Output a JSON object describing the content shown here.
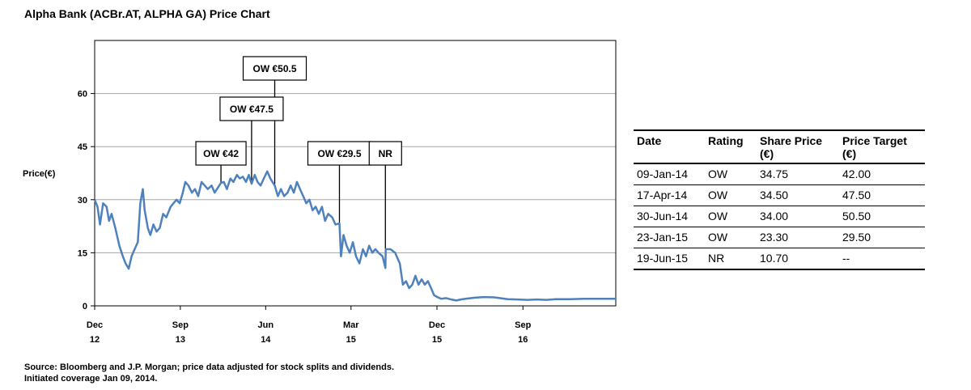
{
  "title": "Alpha Bank (ACBr.AT, ALPHA GA) Price Chart",
  "chart_data": {
    "type": "line",
    "title": "Alpha Bank (ACBr.AT, ALPHA GA) Price Chart",
    "ylabel": "Price(€)",
    "xlabel": "",
    "ylim": [
      0,
      75
    ],
    "yticks": [
      0,
      15,
      30,
      45,
      60
    ],
    "x_range": [
      "2012-12-01",
      "2017-06-25"
    ],
    "x_ticks": [
      {
        "date": "2012-12-01",
        "line1": "Dec",
        "line2": "12"
      },
      {
        "date": "2013-09-01",
        "line1": "Sep",
        "line2": "13"
      },
      {
        "date": "2014-06-01",
        "line1": "Jun",
        "line2": "14"
      },
      {
        "date": "2015-03-01",
        "line1": "Mar",
        "line2": "15"
      },
      {
        "date": "2015-12-01",
        "line1": "Dec",
        "line2": "15"
      },
      {
        "date": "2016-09-01",
        "line1": "Sep",
        "line2": "16"
      }
    ],
    "grid": true,
    "series": [
      {
        "name": "",
        "color": "#4f81bd",
        "points": [
          [
            "2012-12-01",
            30
          ],
          [
            "2012-12-10",
            28
          ],
          [
            "2012-12-18",
            23
          ],
          [
            "2012-12-28",
            29
          ],
          [
            "2013-01-08",
            28
          ],
          [
            "2013-01-16",
            24
          ],
          [
            "2013-01-24",
            26
          ],
          [
            "2013-02-05",
            22
          ],
          [
            "2013-02-18",
            17
          ],
          [
            "2013-03-01",
            14
          ],
          [
            "2013-03-10",
            12
          ],
          [
            "2013-03-20",
            10.5
          ],
          [
            "2013-03-29",
            14
          ],
          [
            "2013-04-08",
            16
          ],
          [
            "2013-04-18",
            18
          ],
          [
            "2013-04-26",
            29
          ],
          [
            "2013-05-04",
            33
          ],
          [
            "2013-05-10",
            27
          ],
          [
            "2013-05-20",
            22
          ],
          [
            "2013-05-28",
            20
          ],
          [
            "2013-06-07",
            23
          ],
          [
            "2013-06-17",
            21
          ],
          [
            "2013-06-27",
            22
          ],
          [
            "2013-07-08",
            26
          ],
          [
            "2013-07-18",
            25
          ],
          [
            "2013-08-01",
            28
          ],
          [
            "2013-08-10",
            29
          ],
          [
            "2013-08-20",
            30
          ],
          [
            "2013-08-30",
            29
          ],
          [
            "2013-09-09",
            32
          ],
          [
            "2013-09-17",
            35
          ],
          [
            "2013-09-27",
            34
          ],
          [
            "2013-10-08",
            32
          ],
          [
            "2013-10-18",
            33
          ],
          [
            "2013-10-28",
            31
          ],
          [
            "2013-11-08",
            35
          ],
          [
            "2013-11-18",
            34
          ],
          [
            "2013-11-28",
            33
          ],
          [
            "2013-12-10",
            34
          ],
          [
            "2013-12-20",
            32
          ],
          [
            "2014-01-09",
            34.75
          ],
          [
            "2014-01-18",
            35
          ],
          [
            "2014-01-28",
            33
          ],
          [
            "2014-02-08",
            36
          ],
          [
            "2014-02-18",
            35
          ],
          [
            "2014-03-01",
            37
          ],
          [
            "2014-03-10",
            36
          ],
          [
            "2014-03-20",
            36.5
          ],
          [
            "2014-03-30",
            35
          ],
          [
            "2014-04-08",
            37
          ],
          [
            "2014-04-17",
            34.5
          ],
          [
            "2014-04-27",
            37
          ],
          [
            "2014-05-06",
            35
          ],
          [
            "2014-05-16",
            34
          ],
          [
            "2014-05-26",
            36
          ],
          [
            "2014-06-06",
            38
          ],
          [
            "2014-06-16",
            36
          ],
          [
            "2014-06-30",
            34
          ],
          [
            "2014-07-10",
            31
          ],
          [
            "2014-07-20",
            33
          ],
          [
            "2014-07-30",
            31
          ],
          [
            "2014-08-10",
            32
          ],
          [
            "2014-08-20",
            34
          ],
          [
            "2014-08-30",
            32
          ],
          [
            "2014-09-09",
            35
          ],
          [
            "2014-09-19",
            33
          ],
          [
            "2014-09-29",
            31
          ],
          [
            "2014-10-09",
            29
          ],
          [
            "2014-10-19",
            30
          ],
          [
            "2014-10-29",
            27
          ],
          [
            "2014-11-08",
            28
          ],
          [
            "2014-11-18",
            26
          ],
          [
            "2014-11-28",
            28
          ],
          [
            "2014-12-08",
            24
          ],
          [
            "2014-12-18",
            26
          ],
          [
            "2014-12-31",
            25
          ],
          [
            "2015-01-10",
            23
          ],
          [
            "2015-01-23",
            23.3
          ],
          [
            "2015-01-28",
            14
          ],
          [
            "2015-02-05",
            20
          ],
          [
            "2015-02-15",
            17
          ],
          [
            "2015-02-25",
            15
          ],
          [
            "2015-03-07",
            18
          ],
          [
            "2015-03-17",
            14
          ],
          [
            "2015-03-28",
            12
          ],
          [
            "2015-04-08",
            16
          ],
          [
            "2015-04-18",
            14
          ],
          [
            "2015-04-28",
            17
          ],
          [
            "2015-05-08",
            15
          ],
          [
            "2015-05-18",
            16
          ],
          [
            "2015-05-28",
            15
          ],
          [
            "2015-06-10",
            14
          ],
          [
            "2015-06-19",
            10.7
          ],
          [
            "2015-06-20",
            16
          ],
          [
            "2015-07-05",
            16
          ],
          [
            "2015-07-20",
            15
          ],
          [
            "2015-08-04",
            12
          ],
          [
            "2015-08-14",
            6
          ],
          [
            "2015-08-24",
            7
          ],
          [
            "2015-09-03",
            5
          ],
          [
            "2015-09-13",
            6
          ],
          [
            "2015-09-23",
            8.5
          ],
          [
            "2015-10-03",
            6
          ],
          [
            "2015-10-13",
            7.5
          ],
          [
            "2015-10-23",
            6
          ],
          [
            "2015-11-02",
            7
          ],
          [
            "2015-11-12",
            5
          ],
          [
            "2015-11-22",
            3
          ],
          [
            "2015-12-02",
            2.5
          ],
          [
            "2015-12-15",
            2
          ],
          [
            "2015-12-30",
            2.2
          ],
          [
            "2016-01-15",
            1.8
          ],
          [
            "2016-02-01",
            1.5
          ],
          [
            "2016-02-15",
            1.8
          ],
          [
            "2016-03-01",
            2.0
          ],
          [
            "2016-04-01",
            2.3
          ],
          [
            "2016-05-01",
            2.5
          ],
          [
            "2016-06-01",
            2.4
          ],
          [
            "2016-06-25",
            2.1
          ],
          [
            "2016-07-15",
            1.9
          ],
          [
            "2016-08-15",
            1.8
          ],
          [
            "2016-09-15",
            1.7
          ],
          [
            "2016-10-15",
            1.8
          ],
          [
            "2016-11-15",
            1.7
          ],
          [
            "2016-12-15",
            1.9
          ],
          [
            "2017-02-01",
            1.9
          ],
          [
            "2017-03-15",
            2.0
          ],
          [
            "2017-05-01",
            2.0
          ],
          [
            "2017-06-25",
            2.0
          ]
        ]
      }
    ],
    "annotations": [
      {
        "label": "OW €42",
        "date": "2014-01-09",
        "price": 34.75,
        "level": 1
      },
      {
        "label": "OW €47.5",
        "date": "2014-04-17",
        "price": 34.5,
        "level": 2
      },
      {
        "label": "OW €50.5",
        "date": "2014-06-30",
        "price": 34.0,
        "level": 3
      },
      {
        "label": "OW €29.5",
        "date": "2015-01-23",
        "price": 23.3,
        "level": 1
      },
      {
        "label": "NR",
        "date": "2015-06-19",
        "price": 10.7,
        "level": 1
      }
    ]
  },
  "table": {
    "headers": {
      "date": "Date",
      "rating": "Rating",
      "share_line1": "Share Price",
      "share_line2": "(€)",
      "target_line1": "Price Target",
      "target_line2": "(€)"
    },
    "rows": [
      {
        "date": "09-Jan-14",
        "rating": "OW",
        "share": "34.75",
        "target": "42.00"
      },
      {
        "date": "17-Apr-14",
        "rating": "OW",
        "share": "34.50",
        "target": "47.50"
      },
      {
        "date": "30-Jun-14",
        "rating": "OW",
        "share": "34.00",
        "target": "50.50"
      },
      {
        "date": "23-Jan-15",
        "rating": "OW",
        "share": "23.30",
        "target": "29.50"
      },
      {
        "date": "19-Jun-15",
        "rating": "NR",
        "share": "10.70",
        "target": "--"
      }
    ]
  },
  "source": {
    "line1": "Source: Bloomberg and J.P. Morgan; price data adjusted for stock splits and dividends.",
    "line2": "Initiated coverage Jan 09, 2014."
  }
}
